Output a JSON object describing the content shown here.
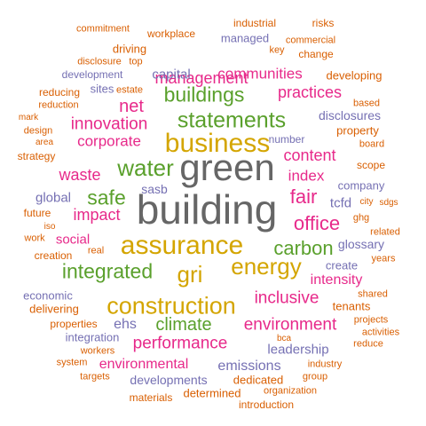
{
  "palette": {
    "gray": "#666666",
    "gold": "#d4a500",
    "green": "#5aa02c",
    "pink": "#e7298a",
    "orange": "#d95f02",
    "slate": "#7570b3"
  },
  "words": [
    {
      "text": "building",
      "color": "gray"
    },
    {
      "text": "green",
      "color": "gray"
    },
    {
      "text": "business",
      "color": "gold"
    },
    {
      "text": "assurance",
      "color": "gold"
    },
    {
      "text": "construction",
      "color": "gold"
    },
    {
      "text": "statements",
      "color": "green"
    },
    {
      "text": "energy",
      "color": "gold"
    },
    {
      "text": "integrated",
      "color": "green"
    },
    {
      "text": "gri",
      "color": "gold"
    },
    {
      "text": "water",
      "color": "green"
    },
    {
      "text": "buildings",
      "color": "green"
    },
    {
      "text": "carbon",
      "color": "green"
    },
    {
      "text": "climate",
      "color": "green"
    },
    {
      "text": "safe",
      "color": "green"
    },
    {
      "text": "inclusive",
      "color": "pink"
    },
    {
      "text": "performance",
      "color": "pink"
    },
    {
      "text": "environment",
      "color": "pink"
    },
    {
      "text": "innovation",
      "color": "pink"
    },
    {
      "text": "management",
      "color": "pink"
    },
    {
      "text": "communities",
      "color": "pink"
    },
    {
      "text": "practices",
      "color": "pink"
    },
    {
      "text": "corporate",
      "color": "pink"
    },
    {
      "text": "content",
      "color": "pink"
    },
    {
      "text": "impact",
      "color": "pink"
    },
    {
      "text": "office",
      "color": "pink"
    },
    {
      "text": "fair",
      "color": "pink"
    },
    {
      "text": "net",
      "color": "pink"
    },
    {
      "text": "waste",
      "color": "pink"
    },
    {
      "text": "index",
      "color": "pink"
    },
    {
      "text": "intensity",
      "color": "pink"
    },
    {
      "text": "environmental",
      "color": "pink"
    },
    {
      "text": "social",
      "color": "pink"
    },
    {
      "text": "capital",
      "color": "slate"
    },
    {
      "text": "sasb",
      "color": "slate"
    },
    {
      "text": "global",
      "color": "slate"
    },
    {
      "text": "tcfd",
      "color": "slate"
    },
    {
      "text": "emissions",
      "color": "slate"
    },
    {
      "text": "leadership",
      "color": "slate"
    },
    {
      "text": "ehs",
      "color": "slate"
    },
    {
      "text": "developments",
      "color": "slate"
    },
    {
      "text": "disclosures",
      "color": "slate"
    },
    {
      "text": "glossary",
      "color": "slate"
    },
    {
      "text": "company",
      "color": "slate"
    },
    {
      "text": "sites",
      "color": "slate"
    },
    {
      "text": "integration",
      "color": "slate"
    },
    {
      "text": "managed",
      "color": "slate"
    },
    {
      "text": "development",
      "color": "slate"
    },
    {
      "text": "economic",
      "color": "slate"
    },
    {
      "text": "create",
      "color": "slate"
    },
    {
      "text": "number",
      "color": "slate"
    },
    {
      "text": "dedicated",
      "color": "orange"
    },
    {
      "text": "determined",
      "color": "orange"
    },
    {
      "text": "property",
      "color": "orange"
    },
    {
      "text": "strategy",
      "color": "orange"
    },
    {
      "text": "future",
      "color": "orange"
    },
    {
      "text": "workplace",
      "color": "orange"
    },
    {
      "text": "driving",
      "color": "orange"
    },
    {
      "text": "reducing",
      "color": "orange"
    },
    {
      "text": "reduction",
      "color": "orange"
    },
    {
      "text": "design",
      "color": "orange"
    },
    {
      "text": "delivering",
      "color": "orange"
    },
    {
      "text": "creation",
      "color": "orange"
    },
    {
      "text": "properties",
      "color": "orange"
    },
    {
      "text": "tenants",
      "color": "orange"
    },
    {
      "text": "materials",
      "color": "orange"
    },
    {
      "text": "introduction",
      "color": "orange"
    },
    {
      "text": "organization",
      "color": "orange"
    },
    {
      "text": "industry",
      "color": "orange"
    },
    {
      "text": "commitment",
      "color": "orange"
    },
    {
      "text": "industrial",
      "color": "orange"
    },
    {
      "text": "risks",
      "color": "orange"
    },
    {
      "text": "commercial",
      "color": "orange"
    },
    {
      "text": "change",
      "color": "orange"
    },
    {
      "text": "developing",
      "color": "orange"
    },
    {
      "text": "key",
      "color": "orange"
    },
    {
      "text": "disclosure",
      "color": "orange"
    },
    {
      "text": "top",
      "color": "orange"
    },
    {
      "text": "estate",
      "color": "orange"
    },
    {
      "text": "mark",
      "color": "orange"
    },
    {
      "text": "area",
      "color": "orange"
    },
    {
      "text": "based",
      "color": "orange"
    },
    {
      "text": "board",
      "color": "orange"
    },
    {
      "text": "scope",
      "color": "orange"
    },
    {
      "text": "city",
      "color": "orange"
    },
    {
      "text": "sdgs",
      "color": "orange"
    },
    {
      "text": "ghg",
      "color": "orange"
    },
    {
      "text": "related",
      "color": "orange"
    },
    {
      "text": "years",
      "color": "orange"
    },
    {
      "text": "shared",
      "color": "orange"
    },
    {
      "text": "projects",
      "color": "orange"
    },
    {
      "text": "activities",
      "color": "orange"
    },
    {
      "text": "reduce",
      "color": "orange"
    },
    {
      "text": "bca",
      "color": "orange"
    },
    {
      "text": "group",
      "color": "orange"
    },
    {
      "text": "system",
      "color": "orange"
    },
    {
      "text": "workers",
      "color": "orange"
    },
    {
      "text": "targets",
      "color": "orange"
    },
    {
      "text": "iso",
      "color": "orange"
    },
    {
      "text": "work",
      "color": "orange"
    },
    {
      "text": "real",
      "color": "orange"
    }
  ]
}
